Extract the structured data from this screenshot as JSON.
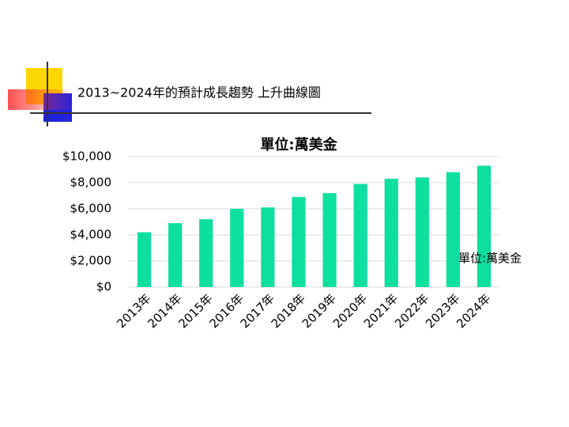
{
  "slide": {
    "title": "2013~2024年的預計成長趨勢 上升曲線圖"
  },
  "chart_data": {
    "type": "bar",
    "title": "單位:萬美金",
    "categories": [
      "2013年",
      "2014年",
      "2015年",
      "2016年",
      "2017年",
      "2018年",
      "2019年",
      "2020年",
      "2021年",
      "2022年",
      "2023年",
      "2024年"
    ],
    "series": [
      {
        "name": "單位:萬美金",
        "color": "#0ddf9f",
        "values": [
          4200,
          4900,
          5200,
          6000,
          6100,
          6900,
          7200,
          7900,
          8300,
          8400,
          8800,
          9300
        ]
      }
    ],
    "ylim": [
      0,
      10000
    ],
    "yticks": [
      {
        "value": 0,
        "label": "$0"
      },
      {
        "value": 2000,
        "label": "$2,000"
      },
      {
        "value": 4000,
        "label": "$4,000"
      },
      {
        "value": 6000,
        "label": "$6,000"
      },
      {
        "value": 8000,
        "label": "$8,000"
      },
      {
        "value": 10000,
        "label": "$10,000"
      }
    ],
    "grid": true,
    "legend": "right"
  }
}
